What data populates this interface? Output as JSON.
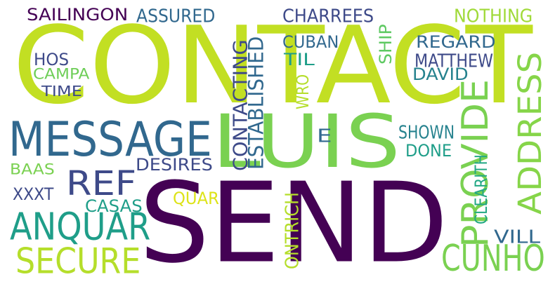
{
  "words": [
    {
      "text": "CONTACT",
      "color": "#c2df23",
      "rotated": false
    },
    {
      "text": "SEND",
      "color": "#440154",
      "rotated": false
    },
    {
      "text": "LUIS",
      "color": "#7ad151",
      "rotated": false
    },
    {
      "text": "MESSAGE",
      "color": "#31688e",
      "rotated": false
    },
    {
      "text": "ANQUAR",
      "color": "#1f9e89",
      "rotated": false
    },
    {
      "text": "SECURE",
      "color": "#b5de2b",
      "rotated": false
    },
    {
      "text": "REF",
      "color": "#3e4a89",
      "rotated": false
    },
    {
      "text": "CUNHO",
      "color": "#7ad151",
      "rotated": false
    },
    {
      "text": "PROVIDE",
      "color": "#7ad151",
      "rotated": true
    },
    {
      "text": "ADDRESS",
      "color": "#86d549",
      "rotated": true
    },
    {
      "text": "CONTACTING",
      "color": "#3e4a89",
      "rotated": true
    },
    {
      "text": "ESTABLISHED",
      "color": "#31688e",
      "rotated": true
    },
    {
      "text": "SAILINGON",
      "color": "#440154",
      "rotated": false
    },
    {
      "text": "ASSURED",
      "color": "#31688e",
      "rotated": false
    },
    {
      "text": "CHARREES",
      "color": "#3e4a89",
      "rotated": false
    },
    {
      "text": "NOTHING",
      "color": "#a0da39",
      "rotated": false
    },
    {
      "text": "HOS",
      "color": "#3e4a89",
      "rotated": false
    },
    {
      "text": "CAMPA",
      "color": "#6ece58",
      "rotated": false
    },
    {
      "text": "TIME",
      "color": "#3e4a89",
      "rotated": false
    },
    {
      "text": "CUBAN",
      "color": "#31688e",
      "rotated": false
    },
    {
      "text": "TIL",
      "color": "#1f9e89",
      "rotated": false
    },
    {
      "text": "REGARD",
      "color": "#31688e",
      "rotated": false
    },
    {
      "text": "MATTHEW",
      "color": "#3e4a89",
      "rotated": false
    },
    {
      "text": "DAVID",
      "color": "#26828e",
      "rotated": false
    },
    {
      "text": "SHIP",
      "color": "#5ec962",
      "rotated": true
    },
    {
      "text": "WRO",
      "color": "#b5de2b",
      "rotated": true
    },
    {
      "text": "E",
      "color": "#31688e",
      "rotated": false
    },
    {
      "text": "SHOWN",
      "color": "#26828e",
      "rotated": false
    },
    {
      "text": "DONE",
      "color": "#1f9e89",
      "rotated": false
    },
    {
      "text": "CLEARITH",
      "color": "#22a884",
      "rotated": true
    },
    {
      "text": "BAAS",
      "color": "#7ad151",
      "rotated": false
    },
    {
      "text": "DESIRES",
      "color": "#3e4a89",
      "rotated": false
    },
    {
      "text": "XXXT",
      "color": "#3e4a89",
      "rotated": false
    },
    {
      "text": "QUAR",
      "color": "#dde318",
      "rotated": false
    },
    {
      "text": "CASAS",
      "color": "#1f9e89",
      "rotated": false
    },
    {
      "text": "ONTRICH",
      "color": "#b5de2b",
      "rotated": true
    },
    {
      "text": "VILL",
      "color": "#31688e",
      "rotated": false
    }
  ]
}
